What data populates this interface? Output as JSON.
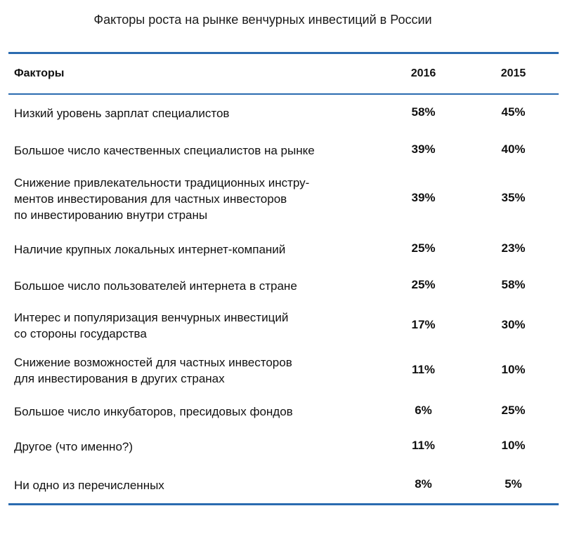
{
  "title": "Факторы роста на рынке венчурных инвестиций в России",
  "header": {
    "factor_label": "Факторы",
    "year1": "2016",
    "year2": "2015"
  },
  "rows": [
    {
      "factor": "Низкий уровень зарплат специалистов",
      "y2016": "58%",
      "y2015": "45%"
    },
    {
      "factor": "Большое число качественных специалистов на рынке",
      "y2016": "39%",
      "y2015": "40%"
    },
    {
      "factor": "Снижение привлекательности традиционных инстру-\nментов инвестирования для частных инвесторов\nпо инвестированию внутри страны",
      "y2016": "39%",
      "y2015": "35%"
    },
    {
      "factor": "Наличие крупных локальных интернет-компаний",
      "y2016": "25%",
      "y2015": "23%"
    },
    {
      "factor": "Большое число пользователей интернета в стране",
      "y2016": "25%",
      "y2015": "58%"
    },
    {
      "factor": "Интерес и популяризация венчурных инвестиций\nсо стороны государства",
      "y2016": "17%",
      "y2015": "30%"
    },
    {
      "factor": "Снижение возможностей для частных инвесторов\nдля инвестирования в других странах",
      "y2016": "11%",
      "y2015": "10%"
    },
    {
      "factor": "Большое число инкубаторов, пресидовых фондов",
      "y2016": "6%",
      "y2015": "25%"
    },
    {
      "factor": "Другое (что именно?)",
      "y2016": "11%",
      "y2015": "10%"
    },
    {
      "factor": "Ни одно из перечисленных",
      "y2016": "8%",
      "y2015": "5%"
    }
  ]
}
